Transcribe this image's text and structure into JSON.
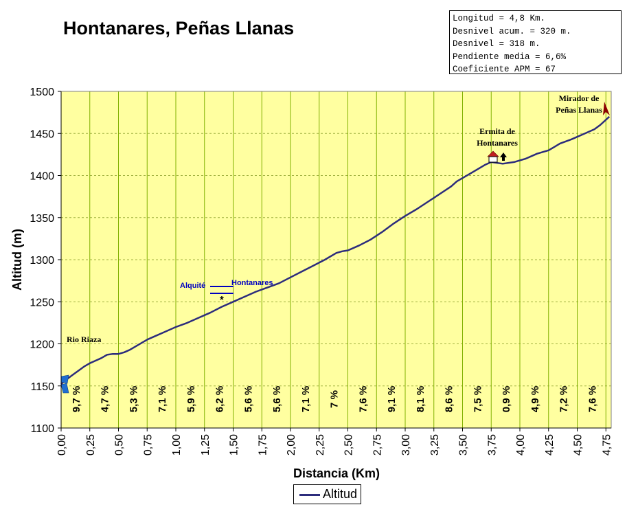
{
  "stats": [
    "Longitud = 4,8 Km.",
    "Desnivel acum. = 320 m.",
    "Desnivel = 318 m.",
    "Pendiente media = 6,6%",
    "Coeficiente APM = 67"
  ],
  "chart_data": {
    "type": "line",
    "title": "Hontanares, Peñas Llanas",
    "xlabel": "Distancia (Km)",
    "ylabel": "Altitud (m)",
    "xlim": [
      0,
      4.8
    ],
    "ylim": [
      1100,
      1500
    ],
    "y_ticks": [
      "1100",
      "1150",
      "1200",
      "1250",
      "1300",
      "1350",
      "1400",
      "1450",
      "1500"
    ],
    "x_ticks": [
      "0,00",
      "0,25",
      "0,50",
      "0,75",
      "1,00",
      "1,25",
      "1,50",
      "1,75",
      "2,00",
      "2,25",
      "2,50",
      "2,75",
      "3,00",
      "3,25",
      "3,50",
      "3,75",
      "4,00",
      "4,25",
      "4,50",
      "4,75"
    ],
    "grid": true,
    "legend_position": "bottom",
    "colors": {
      "line": "#2c2c7c",
      "plot_bg": "#ffffa0",
      "vgrid": "#80b000",
      "hgrid": "#a0b040",
      "slope_text": "#000000",
      "annotation_blue": "#0000c0"
    },
    "series": [
      {
        "name": "Altitud",
        "x": [
          0,
          0.03,
          0.06,
          0.1,
          0.15,
          0.2,
          0.25,
          0.3,
          0.35,
          0.4,
          0.45,
          0.5,
          0.55,
          0.6,
          0.65,
          0.7,
          0.75,
          0.8,
          0.9,
          1.0,
          1.1,
          1.2,
          1.3,
          1.4,
          1.5,
          1.6,
          1.7,
          1.8,
          1.9,
          2.0,
          2.1,
          2.2,
          2.3,
          2.4,
          2.45,
          2.5,
          2.6,
          2.7,
          2.8,
          2.9,
          3.0,
          3.1,
          3.2,
          3.3,
          3.4,
          3.45,
          3.5,
          3.6,
          3.7,
          3.75,
          3.85,
          3.95,
          4.05,
          4.15,
          4.25,
          4.3,
          4.35,
          4.45,
          4.55,
          4.65,
          4.7,
          4.78
        ],
        "y": [
          1152,
          1156,
          1159,
          1163,
          1168,
          1173,
          1177,
          1180,
          1183,
          1187,
          1188,
          1188,
          1190,
          1193,
          1197,
          1201,
          1205,
          1208,
          1214,
          1220,
          1225,
          1231,
          1237,
          1244,
          1250,
          1256,
          1262,
          1267,
          1272,
          1279,
          1286,
          1293,
          1300,
          1308,
          1310,
          1311,
          1317,
          1324,
          1333,
          1343,
          1352,
          1360,
          1369,
          1378,
          1387,
          1393,
          1397,
          1405,
          1413,
          1416,
          1414,
          1416,
          1420,
          1426,
          1430,
          1434,
          1438,
          1443,
          1449,
          1455,
          1460,
          1470
        ]
      }
    ],
    "slope_labels": [
      "9,7 %",
      "4,7 %",
      "5,3 %",
      "7,1 %",
      "5,9 %",
      "6,2 %",
      "5,6 %",
      "5,6 %",
      "7,1 %",
      "7 %",
      "7,6 %",
      "9,1 %",
      "8,1 %",
      "8,6 %",
      "7,5 %",
      "0,9 %",
      "4,9 %",
      "7,2 %",
      "7,6 %"
    ],
    "annotations": [
      {
        "text": "Rio Riaza",
        "x": 0.0,
        "y": 1150
      },
      {
        "text": "Alquité",
        "x": 1.3,
        "y": 1262
      },
      {
        "text": "Hontanares",
        "x": 1.5,
        "y": 1262
      },
      {
        "text": "*",
        "x": 1.4,
        "y": 1255
      },
      {
        "lines": [
          "Ermita de",
          "Hontanares"
        ],
        "x": 3.75,
        "y": 1416
      },
      {
        "lines": [
          "Mirador de",
          "Peñas Llanas"
        ],
        "x": 4.78,
        "y": 1470
      }
    ]
  }
}
